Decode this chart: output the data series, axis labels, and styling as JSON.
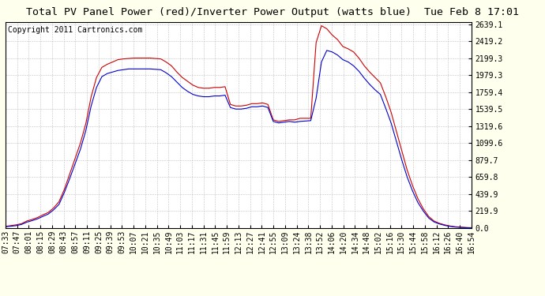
{
  "title": "Total PV Panel Power (red)/Inverter Power Output (watts blue)  Tue Feb 8 17:01",
  "copyright": "Copyright 2011 Cartronics.com",
  "yticks": [
    0.0,
    219.9,
    439.9,
    659.8,
    879.7,
    1099.6,
    1319.6,
    1539.5,
    1759.4,
    1979.3,
    2199.3,
    2419.2,
    2639.1
  ],
  "ymin": 0.0,
  "ymax": 2639.1,
  "xtick_labels": [
    "07:33",
    "07:47",
    "08:01",
    "08:15",
    "08:29",
    "08:43",
    "08:57",
    "09:11",
    "09:25",
    "09:39",
    "09:53",
    "10:07",
    "10:21",
    "10:35",
    "10:49",
    "11:03",
    "11:17",
    "11:31",
    "11:45",
    "11:59",
    "12:13",
    "12:27",
    "12:41",
    "12:55",
    "13:09",
    "13:24",
    "13:38",
    "13:52",
    "14:06",
    "14:20",
    "14:34",
    "14:48",
    "15:02",
    "15:16",
    "15:30",
    "15:44",
    "15:58",
    "16:12",
    "16:26",
    "16:40",
    "16:54"
  ],
  "bg_color": "#FFFFEE",
  "plot_bg_color": "#FFFFFF",
  "grid_color": "#BBBBBB",
  "red_color": "#CC0000",
  "blue_color": "#0000CC",
  "title_fontsize": 9.5,
  "copyright_fontsize": 7,
  "tick_fontsize": 7,
  "red_data": [
    20,
    30,
    40,
    55,
    90,
    110,
    135,
    170,
    200,
    260,
    340,
    500,
    700,
    900,
    1100,
    1350,
    1700,
    1950,
    2080,
    2120,
    2150,
    2180,
    2190,
    2195,
    2200,
    2200,
    2200,
    2200,
    2195,
    2190,
    2150,
    2100,
    2020,
    1950,
    1900,
    1850,
    1820,
    1810,
    1810,
    1820,
    1820,
    1830,
    1600,
    1580,
    1580,
    1590,
    1610,
    1610,
    1620,
    1600,
    1400,
    1380,
    1390,
    1400,
    1400,
    1420,
    1420,
    1420,
    2400,
    2620,
    2580,
    2500,
    2440,
    2350,
    2320,
    2280,
    2200,
    2100,
    2020,
    1950,
    1880,
    1700,
    1500,
    1250,
    1000,
    750,
    550,
    380,
    250,
    150,
    90,
    60,
    40,
    25,
    15,
    10,
    5,
    3
  ],
  "blue_data": [
    15,
    22,
    30,
    45,
    75,
    95,
    118,
    150,
    180,
    235,
    305,
    460,
    640,
    830,
    1020,
    1260,
    1580,
    1820,
    1960,
    2000,
    2020,
    2040,
    2050,
    2060,
    2060,
    2060,
    2060,
    2060,
    2055,
    2050,
    2010,
    1960,
    1890,
    1820,
    1770,
    1730,
    1710,
    1700,
    1700,
    1710,
    1710,
    1720,
    1560,
    1540,
    1540,
    1550,
    1570,
    1570,
    1580,
    1560,
    1380,
    1360,
    1370,
    1380,
    1370,
    1380,
    1385,
    1390,
    1680,
    2150,
    2300,
    2280,
    2240,
    2180,
    2150,
    2100,
    2030,
    1940,
    1860,
    1790,
    1730,
    1550,
    1360,
    1120,
    880,
    660,
    480,
    330,
    220,
    130,
    78,
    52,
    33,
    20,
    11,
    7,
    3,
    1
  ]
}
